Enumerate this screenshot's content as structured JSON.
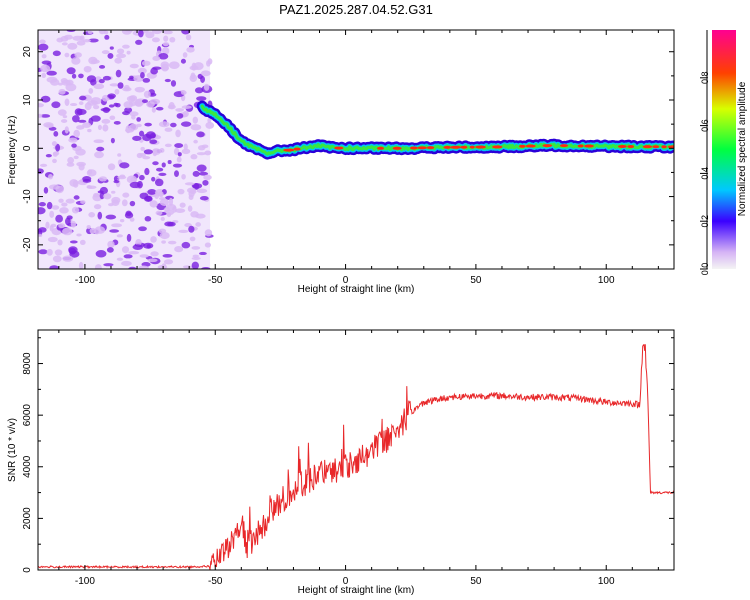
{
  "title": "PAZ1.2025.287.04.52.G31",
  "colors": {
    "snr_line": "#e8282a",
    "noise_light": "#d9b8f5",
    "noise_dark": "#7a1fe0",
    "axis": "#000000"
  },
  "chart_data": [
    {
      "type": "heatmap",
      "name": "spectrogram",
      "xlabel": "Height of straight line (km)",
      "ylabel": "Frequency (Hz)",
      "xlim": [
        -118,
        126
      ],
      "ylim": [
        -25,
        24.5
      ],
      "xticks": [
        -100,
        -50,
        0,
        50,
        100
      ],
      "yticks": [
        -20,
        -10,
        0,
        10,
        20
      ],
      "noise_region_x": [
        -118,
        -52
      ],
      "ridge": {
        "x": [
          -55,
          -50,
          -45,
          -40,
          -35,
          -30,
          -25,
          -20,
          -15,
          -10,
          -5,
          0,
          20,
          40,
          60,
          80,
          100,
          126
        ],
        "freq": [
          8.5,
          7.0,
          4.5,
          1.5,
          0.0,
          -1.0,
          -0.5,
          -0.3,
          0.2,
          0.5,
          0.1,
          0.0,
          0.0,
          0.2,
          0.3,
          0.6,
          0.4,
          0.3
        ]
      },
      "colorbar": {
        "label": "Normalized spectral amplitude",
        "range": [
          0,
          1
        ],
        "ticks": [
          "0.0",
          "0.2",
          "0.4",
          "0.6",
          "0.8"
        ]
      }
    },
    {
      "type": "line",
      "name": "snr",
      "xlabel": "Height of straight line (km)",
      "ylabel": "SNR (10 * v/v)",
      "xlim": [
        -118,
        126
      ],
      "ylim": [
        0,
        9300
      ],
      "xticks": [
        -100,
        -50,
        0,
        50,
        100
      ],
      "yticks": [
        0,
        2000,
        4000,
        6000,
        8000
      ],
      "series": [
        {
          "name": "SNR",
          "x": [
            -118,
            -60,
            -52,
            -48,
            -45,
            -42,
            -40,
            -38,
            -35,
            -30,
            -25,
            -20,
            -15,
            -10,
            -5,
            0,
            5,
            10,
            15,
            20,
            25,
            30,
            35,
            40,
            50,
            60,
            70,
            80,
            90,
            100,
            110,
            113,
            114,
            115,
            116,
            117,
            126
          ],
          "y": [
            120,
            120,
            150,
            500,
            900,
            1400,
            1800,
            1000,
            1200,
            2000,
            2600,
            3200,
            3400,
            3700,
            3800,
            4000,
            4300,
            4600,
            5000,
            5500,
            6100,
            6500,
            6600,
            6700,
            6750,
            6750,
            6700,
            6700,
            6650,
            6500,
            6450,
            6400,
            9000,
            8600,
            6400,
            3000,
            3000
          ]
        }
      ]
    }
  ]
}
